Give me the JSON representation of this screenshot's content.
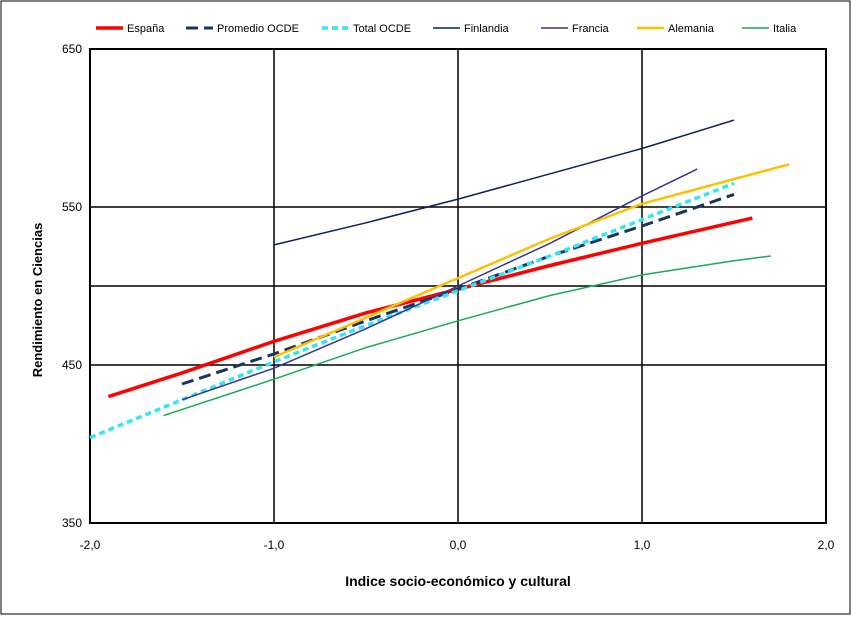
{
  "chart_data": {
    "type": "line",
    "title": "",
    "xlabel": "Indice socio-económico y cultural",
    "ylabel": "Rendimiento en Ciencias",
    "xlim": [
      -2.0,
      2.0
    ],
    "ylim": [
      350,
      650
    ],
    "x_ticks": [
      -2.0,
      -1.0,
      0.0,
      1.0,
      2.0
    ],
    "x_tick_labels": [
      "-2,0",
      "-1,0",
      "0,0",
      "1,0",
      "2,0"
    ],
    "y_tick_labels": [
      {
        "value": 650,
        "label": "650"
      },
      {
        "value": 550,
        "label": "550"
      },
      {
        "value": 450,
        "label": "450"
      },
      {
        "value": 350,
        "label": "350"
      }
    ],
    "grid": true,
    "legend_position": "top",
    "series": [
      {
        "name": "España",
        "color": "#ff0000",
        "width": 3.5,
        "dash": "",
        "points": [
          [
            -1.9,
            430
          ],
          [
            -1.5,
            445
          ],
          [
            -1.0,
            465
          ],
          [
            -0.5,
            483
          ],
          [
            0.0,
            498
          ],
          [
            0.5,
            513
          ],
          [
            1.0,
            527
          ],
          [
            1.6,
            543
          ]
        ]
      },
      {
        "name": "Promedio OCDE",
        "color": "#17365d",
        "width": 3,
        "dash": "12,6",
        "points": [
          [
            -1.5,
            438
          ],
          [
            -1.0,
            457
          ],
          [
            -0.5,
            478
          ],
          [
            0.0,
            498
          ],
          [
            0.5,
            519
          ],
          [
            1.0,
            538
          ],
          [
            1.5,
            558
          ]
        ]
      },
      {
        "name": "Total OCDE",
        "color": "#33e6f5",
        "width": 3.5,
        "dash": "6,4",
        "points": [
          [
            -2.0,
            404
          ],
          [
            -1.5,
            428
          ],
          [
            -1.0,
            452
          ],
          [
            -0.5,
            475
          ],
          [
            0.0,
            497
          ],
          [
            0.5,
            519
          ],
          [
            1.0,
            542
          ],
          [
            1.5,
            565
          ]
        ]
      },
      {
        "name": "Finlandia",
        "color": "#0f1f5c",
        "width": 1.5,
        "dash": "",
        "points": [
          [
            -1.0,
            526
          ],
          [
            -0.5,
            540
          ],
          [
            0.0,
            555
          ],
          [
            0.5,
            571
          ],
          [
            1.0,
            587
          ],
          [
            1.5,
            605
          ]
        ]
      },
      {
        "name": "Francia",
        "color": "#353592",
        "width": 1.5,
        "dash": "",
        "points": [
          [
            -1.5,
            428
          ],
          [
            -1.0,
            448
          ],
          [
            -0.5,
            473
          ],
          [
            0.0,
            500
          ],
          [
            0.5,
            527
          ],
          [
            1.0,
            557
          ],
          [
            1.3,
            574
          ]
        ]
      },
      {
        "name": "Alemania",
        "color": "#ffc000",
        "width": 2.5,
        "dash": "",
        "points": [
          [
            -1.0,
            455
          ],
          [
            -0.5,
            480
          ],
          [
            0.0,
            505
          ],
          [
            0.5,
            530
          ],
          [
            1.0,
            552
          ],
          [
            1.8,
            577
          ]
        ]
      },
      {
        "name": "Italia",
        "color": "#1aaa55",
        "width": 1.5,
        "dash": "",
        "points": [
          [
            -1.6,
            418
          ],
          [
            -1.0,
            441
          ],
          [
            -0.5,
            461
          ],
          [
            0.0,
            478
          ],
          [
            0.5,
            494
          ],
          [
            1.0,
            507
          ],
          [
            1.5,
            516
          ],
          [
            1.7,
            519
          ]
        ]
      }
    ]
  }
}
